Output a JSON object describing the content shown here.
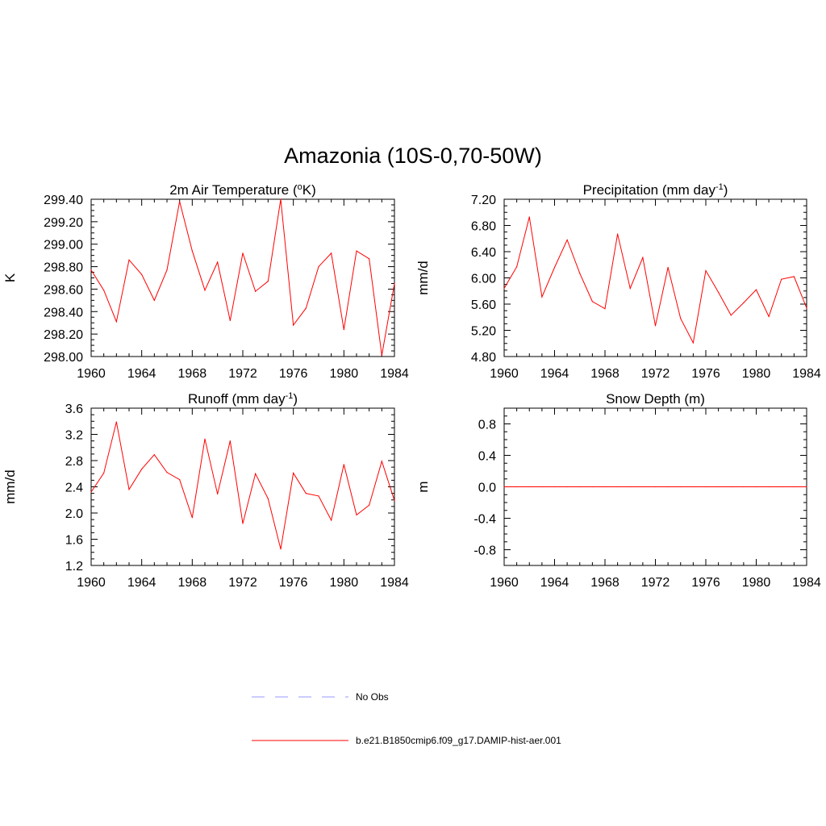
{
  "title": "Amazonia (10S-0,70-50W)",
  "colors": {
    "series": "#ff0000",
    "noobs": "#9999ff",
    "axis": "#000000"
  },
  "legend": [
    {
      "label": "No Obs",
      "style": "dashed",
      "color": "#9999ff"
    },
    {
      "label": "b.e21.B1850cmip6.f09_g17.DAMIP-hist-aer.001",
      "style": "solid",
      "color": "#ff0000"
    }
  ],
  "chart_data": [
    {
      "type": "line",
      "title": "2m Air Temperature (°K)",
      "title_parts": [
        "2m Air Temperature (",
        "o",
        "K)"
      ],
      "title_sup_index": 1,
      "ylabel": "K",
      "xlim": [
        1960,
        1984
      ],
      "ylim": [
        298.0,
        299.4
      ],
      "x_ticks": [
        1960,
        1964,
        1968,
        1972,
        1976,
        1980,
        1984
      ],
      "y_ticks": [
        "298.00",
        "298.20",
        "298.40",
        "298.60",
        "298.80",
        "299.00",
        "299.20",
        "299.40"
      ],
      "y_minor_step": 0.05,
      "series": [
        {
          "color": "#ff0000",
          "x": [
            1960,
            1961,
            1962,
            1963,
            1964,
            1965,
            1966,
            1967,
            1968,
            1969,
            1970,
            1971,
            1972,
            1973,
            1974,
            1975,
            1976,
            1977,
            1978,
            1979,
            1980,
            1981,
            1982,
            1983,
            1984
          ],
          "values": [
            298.77,
            298.59,
            298.31,
            298.86,
            298.73,
            298.5,
            298.77,
            299.38,
            298.94,
            298.59,
            298.84,
            298.32,
            298.92,
            298.58,
            298.67,
            299.4,
            298.28,
            298.43,
            298.8,
            298.92,
            298.24,
            298.94,
            298.87,
            298.01,
            298.65
          ]
        }
      ]
    },
    {
      "type": "line",
      "title": "Precipitation (mm day-1)",
      "title_parts": [
        "Precipitation (mm day",
        "-1",
        ")"
      ],
      "title_sup_index": 1,
      "ylabel": "mm/d",
      "xlim": [
        1960,
        1984
      ],
      "ylim": [
        4.8,
        7.2
      ],
      "x_ticks": [
        1960,
        1964,
        1968,
        1972,
        1976,
        1980,
        1984
      ],
      "y_ticks": [
        "4.80",
        "5.20",
        "5.60",
        "6.00",
        "6.40",
        "6.80",
        "7.20"
      ],
      "y_minor_step": 0.1,
      "series": [
        {
          "color": "#ff0000",
          "x": [
            1960,
            1961,
            1962,
            1963,
            1964,
            1965,
            1966,
            1967,
            1968,
            1969,
            1970,
            1971,
            1972,
            1973,
            1974,
            1975,
            1976,
            1977,
            1978,
            1979,
            1980,
            1981,
            1982,
            1983,
            1984
          ],
          "values": [
            5.84,
            6.17,
            6.93,
            5.71,
            6.16,
            6.58,
            6.07,
            5.64,
            5.53,
            6.67,
            5.84,
            6.31,
            5.27,
            6.16,
            5.38,
            5.01,
            6.11,
            5.78,
            5.43,
            5.62,
            5.82,
            5.41,
            5.98,
            6.02,
            5.54
          ]
        }
      ]
    },
    {
      "type": "line",
      "title": "Runoff (mm day-1)",
      "title_parts": [
        "Runoff (mm day",
        "-1",
        ")"
      ],
      "title_sup_index": 1,
      "ylabel": "mm/d",
      "xlim": [
        1960,
        1984
      ],
      "ylim": [
        1.2,
        3.6
      ],
      "x_ticks": [
        1960,
        1964,
        1968,
        1972,
        1976,
        1980,
        1984
      ],
      "y_ticks": [
        "1.2",
        "1.6",
        "2.0",
        "2.4",
        "2.8",
        "3.2",
        "3.6"
      ],
      "y_minor_step": 0.1,
      "series": [
        {
          "color": "#ff0000",
          "x": [
            1960,
            1961,
            1962,
            1963,
            1964,
            1965,
            1966,
            1967,
            1968,
            1969,
            1970,
            1971,
            1972,
            1973,
            1974,
            1975,
            1976,
            1977,
            1978,
            1979,
            1980,
            1981,
            1982,
            1983,
            1984
          ],
          "values": [
            2.32,
            2.61,
            3.39,
            2.36,
            2.67,
            2.89,
            2.62,
            2.51,
            1.93,
            3.13,
            2.29,
            3.1,
            1.84,
            2.6,
            2.22,
            1.45,
            2.61,
            2.3,
            2.26,
            1.89,
            2.74,
            1.97,
            2.12,
            2.79,
            2.19
          ]
        }
      ]
    },
    {
      "type": "line",
      "title": "Snow Depth (m)",
      "title_parts": [
        "Snow Depth (m)"
      ],
      "title_sup_index": -1,
      "ylabel": "m",
      "xlim": [
        1960,
        1984
      ],
      "ylim": [
        -1.0,
        1.0
      ],
      "x_ticks": [
        1960,
        1964,
        1968,
        1972,
        1976,
        1980,
        1984
      ],
      "y_tick_values": [
        -0.8,
        -0.4,
        0.0,
        0.4,
        0.8
      ],
      "y_ticks": [
        "-0.8",
        "-0.4",
        "0.0",
        "0.4",
        "0.8"
      ],
      "y_minor_step": 0.1,
      "series": [
        {
          "color": "#ff0000",
          "x": [
            1960,
            1961,
            1962,
            1963,
            1964,
            1965,
            1966,
            1967,
            1968,
            1969,
            1970,
            1971,
            1972,
            1973,
            1974,
            1975,
            1976,
            1977,
            1978,
            1979,
            1980,
            1981,
            1982,
            1983,
            1984
          ],
          "values": [
            0,
            0,
            0,
            0,
            0,
            0,
            0,
            0,
            0,
            0,
            0,
            0,
            0,
            0,
            0,
            0,
            0,
            0,
            0,
            0,
            0,
            0,
            0,
            0,
            0
          ]
        }
      ]
    }
  ]
}
